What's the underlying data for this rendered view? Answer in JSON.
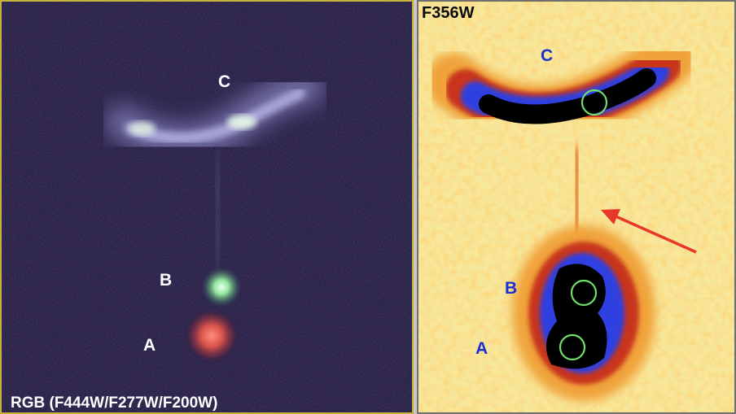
{
  "left_panel": {
    "caption": "RGB (F444W/F277W/F200W)",
    "labels": {
      "a": "A",
      "b": "B",
      "c": "C"
    }
  },
  "right_panel": {
    "caption": "F356W",
    "labels": {
      "a": "A",
      "b": "B",
      "c": "C"
    }
  },
  "colors": {
    "left_frame": "#c9b23a",
    "label_white": "#ffffff",
    "label_blue": "#1c2fd6",
    "aperture_circle": "#6fe06a",
    "arrow": "#e8382a"
  }
}
